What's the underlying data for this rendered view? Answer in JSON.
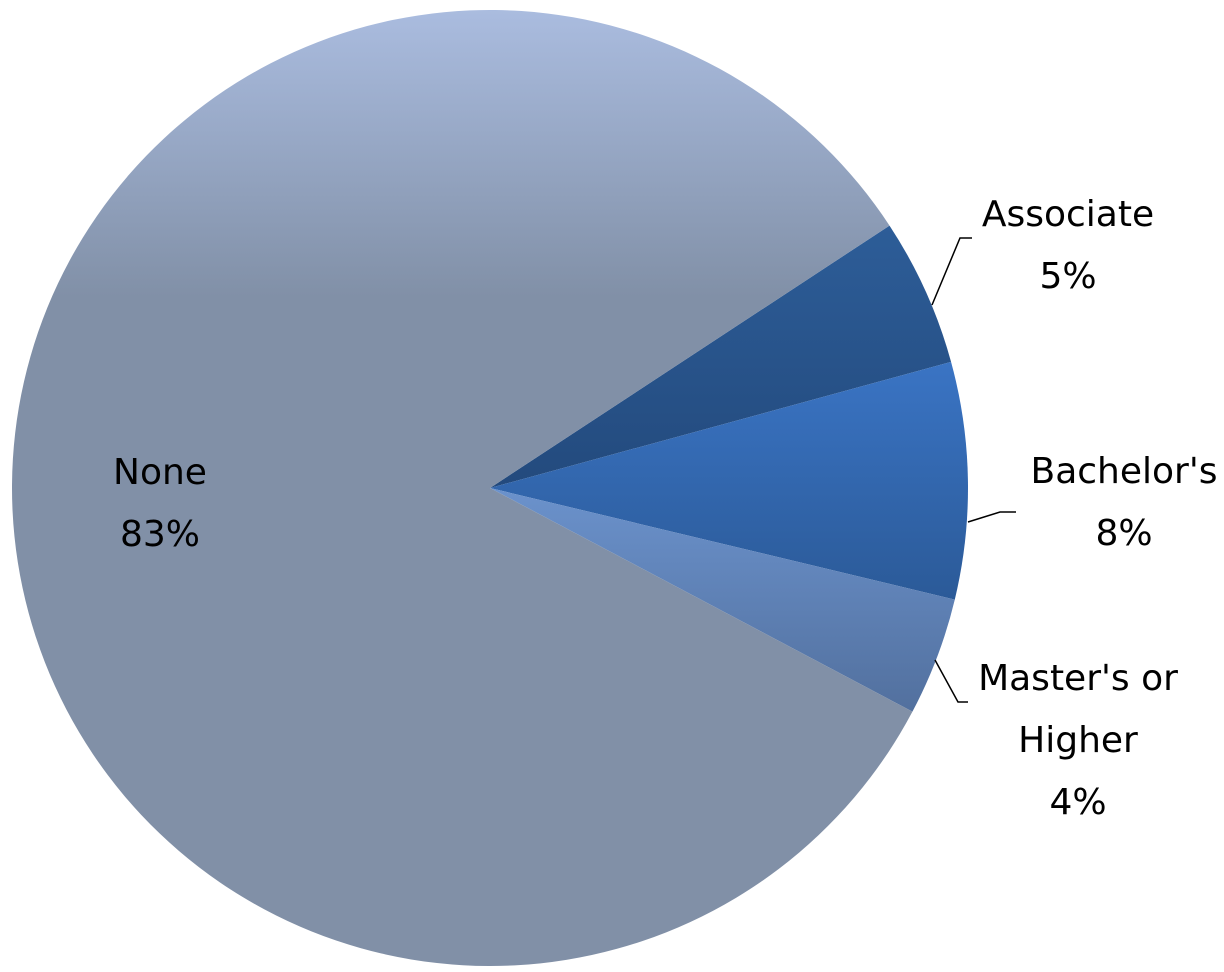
{
  "chart_data": {
    "type": "pie",
    "slices": [
      {
        "label": "Associate",
        "value": 5,
        "display": "5%",
        "color": "#2c5a92"
      },
      {
        "label": "Bachelor's",
        "value": 8,
        "display": "8%",
        "color": "#3468b4"
      },
      {
        "label": "Master's or Higher",
        "value": 4,
        "display": "4%",
        "color": "#6288c0"
      },
      {
        "label": "None",
        "value": 83,
        "display": "83%",
        "color": "#8190a7"
      }
    ]
  }
}
